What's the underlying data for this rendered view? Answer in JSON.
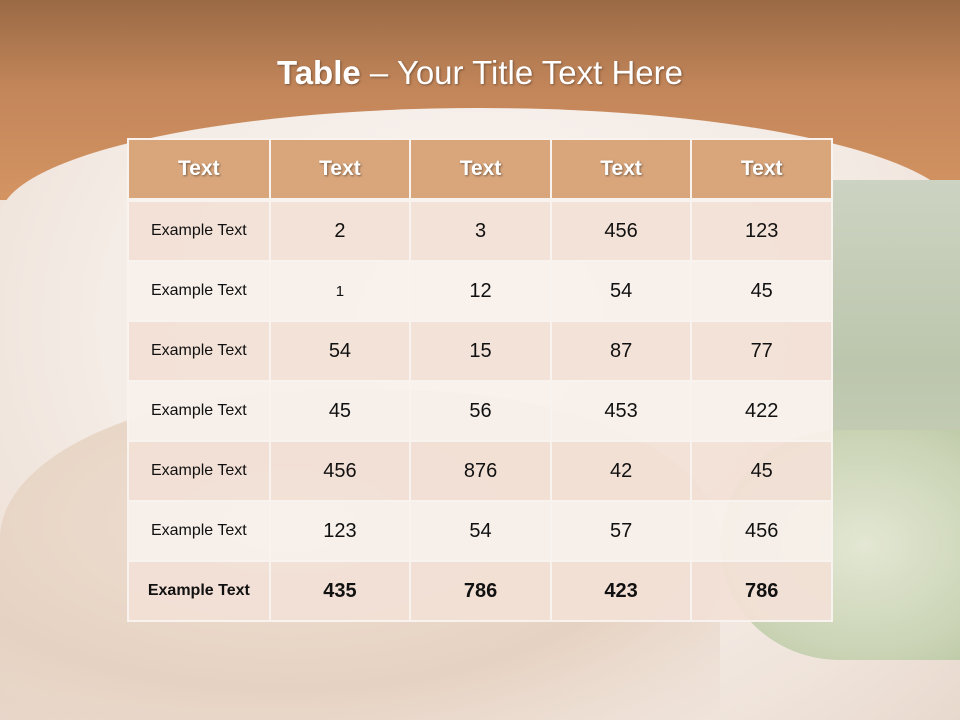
{
  "title": {
    "bold": "Table",
    "rest": " – Your Title Text Here"
  },
  "table": {
    "headers": [
      "Text",
      "Text",
      "Text",
      "Text",
      "Text"
    ],
    "rows": [
      [
        "Example Text",
        "2",
        "3",
        "456",
        "123"
      ],
      [
        "Example Text",
        "1",
        "12",
        "54",
        "45"
      ],
      [
        "Example Text",
        "54",
        "15",
        "87",
        "77"
      ],
      [
        "Example Text",
        "45",
        "56",
        "453",
        "422"
      ],
      [
        "Example Text",
        "456",
        "876",
        "42",
        "45"
      ],
      [
        "Example Text",
        "123",
        "54",
        "57",
        "456"
      ],
      [
        "Example Text",
        "435",
        "786",
        "423",
        "786"
      ]
    ]
  },
  "colors": {
    "header": "#d9a67c",
    "row_odd": "#f2e0d6",
    "row_even": "#f8f0eb",
    "top_band": "#c3865a"
  }
}
